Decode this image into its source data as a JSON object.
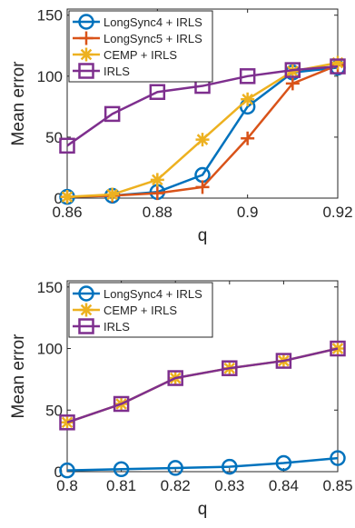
{
  "chart_data": [
    {
      "type": "line",
      "xlabel": "q",
      "ylabel": "Mean error",
      "xlim": [
        0.86,
        0.92
      ],
      "ylim": [
        0,
        155
      ],
      "xticks": [
        0.86,
        0.88,
        0.9,
        0.92
      ],
      "xtick_labels": [
        "0.86",
        "0.88",
        "0.9",
        "0.92"
      ],
      "yticks": [
        0,
        50,
        100,
        150
      ],
      "ytick_labels": [
        "0",
        "50",
        "100",
        "150"
      ],
      "grid": false,
      "legend_position": "top-left",
      "x": [
        0.86,
        0.87,
        0.88,
        0.89,
        0.9,
        0.91,
        0.92
      ],
      "series": [
        {
          "name": "LongSync4 + IRLS",
          "color": "#0072BD",
          "marker": "circle",
          "values": [
            1,
            2,
            5,
            19,
            75,
            103,
            107
          ]
        },
        {
          "name": "LongSync5 + IRLS",
          "color": "#D95319",
          "marker": "plus",
          "values": [
            1,
            2,
            4,
            9,
            49,
            94,
            109
          ]
        },
        {
          "name": "CEMP + IRLS",
          "color": "#EDB120",
          "marker": "asterisk",
          "values": [
            1,
            3,
            15,
            48,
            81,
            104,
            111
          ]
        },
        {
          "name": "IRLS",
          "color": "#7E2F8E",
          "marker": "square",
          "values": [
            43,
            69,
            87,
            92,
            100,
            105,
            108
          ]
        }
      ]
    },
    {
      "type": "line",
      "xlabel": "q",
      "ylabel": "Mean error",
      "xlim": [
        0.8,
        0.85
      ],
      "ylim": [
        0,
        155
      ],
      "xticks": [
        0.8,
        0.81,
        0.82,
        0.83,
        0.84,
        0.85
      ],
      "xtick_labels": [
        "0.8",
        "0.81",
        "0.82",
        "0.83",
        "0.84",
        "0.85"
      ],
      "yticks": [
        0,
        50,
        100,
        150
      ],
      "ytick_labels": [
        "0",
        "50",
        "100",
        "150"
      ],
      "grid": false,
      "legend_position": "top-left",
      "x": [
        0.8,
        0.81,
        0.82,
        0.83,
        0.84,
        0.85
      ],
      "series": [
        {
          "name": "LongSync4 + IRLS",
          "color": "#0072BD",
          "marker": "circle",
          "values": [
            1,
            2,
            3,
            4,
            7,
            11
          ]
        },
        {
          "name": "CEMP + IRLS",
          "color": "#EDB120",
          "marker": "asterisk",
          "values": [
            40,
            55,
            76,
            84,
            90,
            100
          ]
        },
        {
          "name": "IRLS",
          "color": "#7E2F8E",
          "marker": "square",
          "values": [
            40,
            55,
            76,
            84,
            90,
            100
          ]
        }
      ]
    }
  ]
}
